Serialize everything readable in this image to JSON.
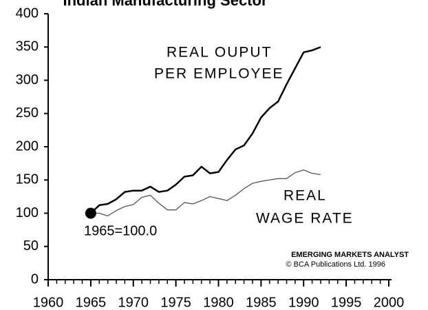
{
  "chart_data": {
    "type": "line",
    "title": "Indian Manufacturing Sector",
    "x": [
      1965,
      1966,
      1967,
      1968,
      1969,
      1970,
      1971,
      1972,
      1973,
      1974,
      1975,
      1976,
      1977,
      1978,
      1979,
      1980,
      1981,
      1982,
      1983,
      1984,
      1985,
      1986,
      1987,
      1988,
      1989,
      1990,
      1991,
      1992
    ],
    "series": [
      {
        "name": [
          "REAL OUPUT",
          "PER EMPLOYEE"
        ],
        "color": "#000000",
        "values": [
          100,
          112,
          114,
          121,
          132,
          134,
          134,
          140,
          132,
          134,
          143,
          155,
          157,
          170,
          160,
          162,
          180,
          196,
          202,
          220,
          244,
          258,
          268,
          294,
          318,
          342,
          345,
          350
        ]
      },
      {
        "name": [
          "REAL",
          "WAGE RATE"
        ],
        "color": "#555555",
        "values": [
          100,
          100,
          96,
          104,
          110,
          113,
          124,
          127,
          115,
          105,
          105,
          116,
          114,
          119,
          125,
          122,
          119,
          127,
          137,
          145,
          148,
          150,
          152,
          152,
          161,
          165,
          160,
          158
        ]
      }
    ],
    "xlim": [
      1960,
      2000
    ],
    "xticks": [
      1960,
      1965,
      1970,
      1975,
      1980,
      1985,
      1990,
      1995,
      2000
    ],
    "ylim": [
      0,
      400
    ],
    "yticks": [
      0,
      50,
      100,
      150,
      200,
      250,
      300,
      350,
      400
    ],
    "annotations": [
      "1965=100.0",
      "EMERGING MARKETS ANALYST",
      "© BCA Publications Ltd. 1996"
    ]
  }
}
